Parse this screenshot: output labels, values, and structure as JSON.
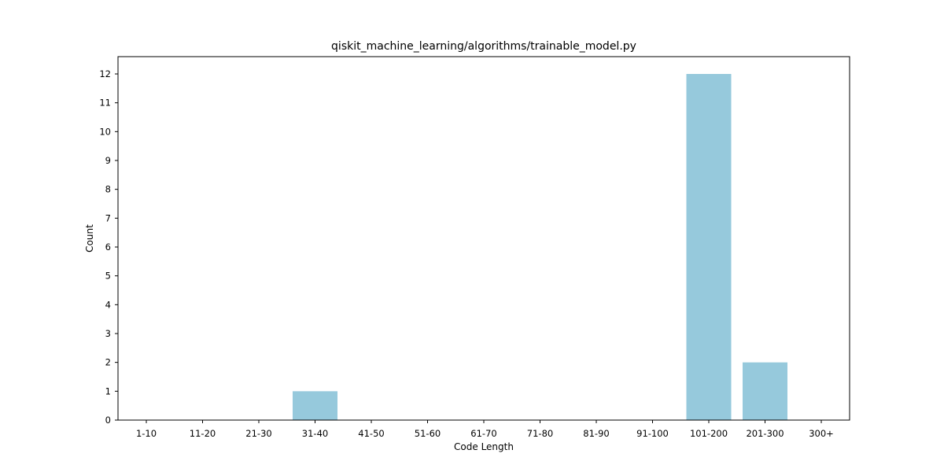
{
  "chart_data": {
    "type": "bar",
    "title": "qiskit_machine_learning/algorithms/trainable_model.py",
    "xlabel": "Code Length",
    "ylabel": "Count",
    "categories": [
      "1-10",
      "11-20",
      "21-30",
      "31-40",
      "41-50",
      "51-60",
      "61-70",
      "71-80",
      "81-90",
      "91-100",
      "101-200",
      "201-300",
      "300+"
    ],
    "values": [
      0,
      0,
      0,
      1,
      0,
      0,
      0,
      0,
      0,
      0,
      12,
      2,
      0
    ],
    "ylim": [
      0,
      12.6
    ],
    "yticks": [
      0,
      1,
      2,
      3,
      4,
      5,
      6,
      7,
      8,
      9,
      10,
      11,
      12
    ],
    "bar_color": "#96c9dc",
    "grid": false,
    "legend": "none"
  }
}
